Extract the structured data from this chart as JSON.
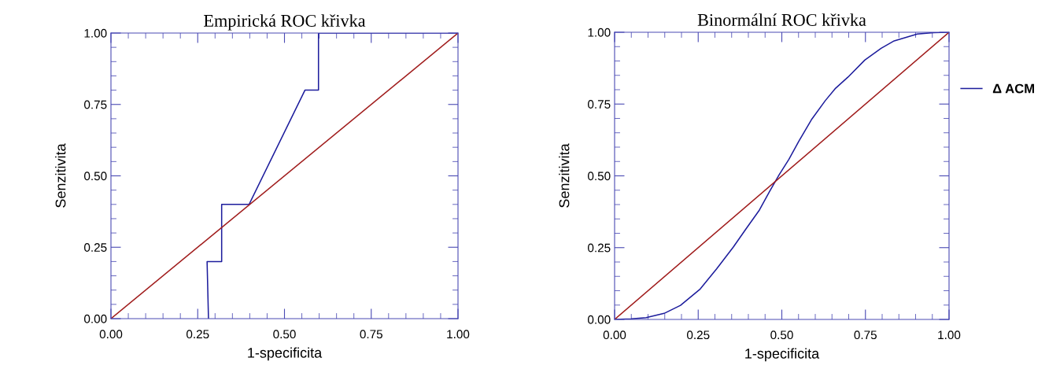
{
  "chart_data": [
    {
      "type": "line",
      "title": "Empirická ROC křivka",
      "xlabel": "1-specificita",
      "ylabel": "Senzitivita",
      "xlim": [
        0,
        1
      ],
      "ylim": [
        0,
        1
      ],
      "xticks": [
        {
          "value": 0,
          "label": "0.00"
        },
        {
          "value": 0.25,
          "label": "0.25"
        },
        {
          "value": 0.5,
          "label": "0.50"
        },
        {
          "value": 0.75,
          "label": "0.75"
        },
        {
          "value": 1,
          "label": "1.00"
        }
      ],
      "yticks": [
        {
          "value": 0,
          "label": "0.00"
        },
        {
          "value": 0.25,
          "label": "0.25"
        },
        {
          "value": 0.5,
          "label": "0.50"
        },
        {
          "value": 0.75,
          "label": "0.75"
        },
        {
          "value": 1,
          "label": "1.00"
        }
      ],
      "grid": false,
      "legend": false,
      "marker": "none",
      "line_style": "solid",
      "series": [
        {
          "color": "#1c1c9c",
          "x": [
            0.281,
            0.277,
            0.319,
            0.319,
            0.398,
            0.559,
            0.598,
            0.598,
            1.0
          ],
          "values": [
            0.0,
            0.2,
            0.2,
            0.4,
            0.4,
            0.8,
            0.8,
            1.0,
            1.0
          ]
        },
        {
          "color": "#a01c1c",
          "x": [
            0,
            1
          ],
          "values": [
            0,
            1
          ]
        }
      ]
    },
    {
      "type": "line",
      "title": "Binormální ROC křivka",
      "xlabel": "1-specificita",
      "ylabel": "Senzitivita",
      "xlim": [
        0,
        1
      ],
      "ylim": [
        0,
        1
      ],
      "xticks": [
        {
          "value": 0,
          "label": "0.00"
        },
        {
          "value": 0.25,
          "label": "0.25"
        },
        {
          "value": 0.5,
          "label": "0.50"
        },
        {
          "value": 0.75,
          "label": "0.75"
        },
        {
          "value": 1,
          "label": "1.00"
        }
      ],
      "yticks": [
        {
          "value": 0,
          "label": "0.00"
        },
        {
          "value": 0.25,
          "label": "0.25"
        },
        {
          "value": 0.5,
          "label": "0.50"
        },
        {
          "value": 0.75,
          "label": "0.75"
        },
        {
          "value": 1,
          "label": "1.00"
        }
      ],
      "grid": false,
      "legend": "right",
      "marker": "none",
      "line_style": "solid",
      "series": [
        {
          "name": "Δ ACM",
          "color": "#1c1c9c",
          "x": [
            0,
            0.05,
            0.094,
            0.148,
            0.197,
            0.256,
            0.305,
            0.355,
            0.394,
            0.433,
            0.463,
            0.492,
            0.521,
            0.551,
            0.59,
            0.63,
            0.659,
            0.698,
            0.748,
            0.797,
            0.836,
            0.905,
            0.954,
            1.0
          ],
          "values": [
            0,
            0.002,
            0.006,
            0.021,
            0.049,
            0.106,
            0.176,
            0.252,
            0.317,
            0.381,
            0.445,
            0.504,
            0.557,
            0.621,
            0.698,
            0.762,
            0.803,
            0.844,
            0.903,
            0.944,
            0.97,
            0.994,
            0.999,
            1.0
          ]
        },
        {
          "color": "#a01c1c",
          "x": [
            0,
            1
          ],
          "values": [
            0,
            1
          ]
        }
      ]
    }
  ]
}
